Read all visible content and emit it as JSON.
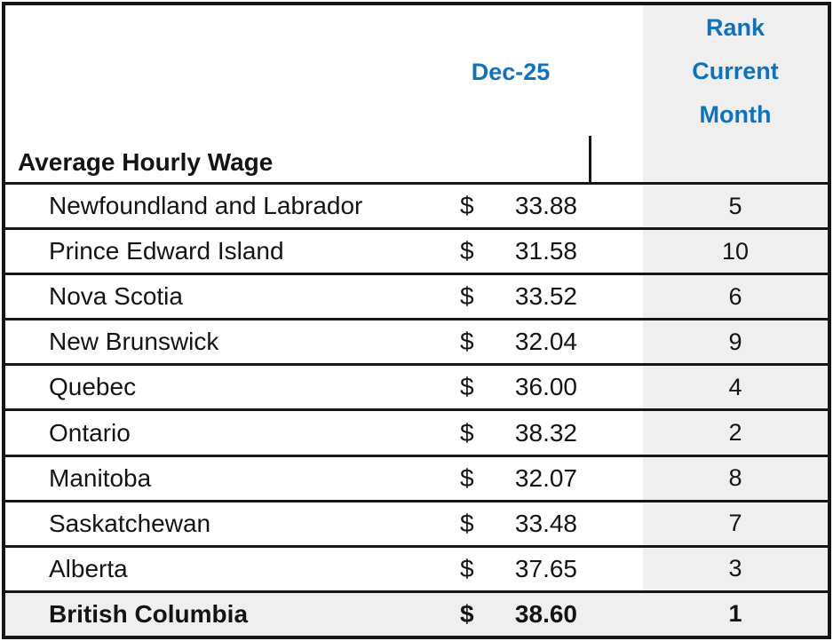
{
  "colors": {
    "accent_blue": "#0f72ba",
    "rank_column_bg": "#efefef",
    "highlight_row_bg": "#efefef",
    "grid_black": "#161616",
    "text_black": "#141414"
  },
  "header": {
    "title": "Average Hourly Wage",
    "period_label": "Dec-25",
    "rank_lines": [
      "Rank",
      "Current",
      "Month"
    ]
  },
  "table": {
    "currency_symbol": "$",
    "rows": [
      {
        "province": "Newfoundland and Labrador",
        "wage": "33.88",
        "rank": "5",
        "highlight": false
      },
      {
        "province": "Prince Edward Island",
        "wage": "31.58",
        "rank": "10",
        "highlight": false
      },
      {
        "province": "Nova Scotia",
        "wage": "33.52",
        "rank": "6",
        "highlight": false
      },
      {
        "province": "New Brunswick",
        "wage": "32.04",
        "rank": "9",
        "highlight": false
      },
      {
        "province": "Quebec",
        "wage": "36.00",
        "rank": "4",
        "highlight": false
      },
      {
        "province": "Ontario",
        "wage": "38.32",
        "rank": "2",
        "highlight": false
      },
      {
        "province": "Manitoba",
        "wage": "32.07",
        "rank": "8",
        "highlight": false
      },
      {
        "province": "Saskatchewan",
        "wage": "33.48",
        "rank": "7",
        "highlight": false
      },
      {
        "province": "Alberta",
        "wage": "37.65",
        "rank": "3",
        "highlight": false
      },
      {
        "province": "British Columbia",
        "wage": "38.60",
        "rank": "1",
        "highlight": true
      }
    ]
  }
}
